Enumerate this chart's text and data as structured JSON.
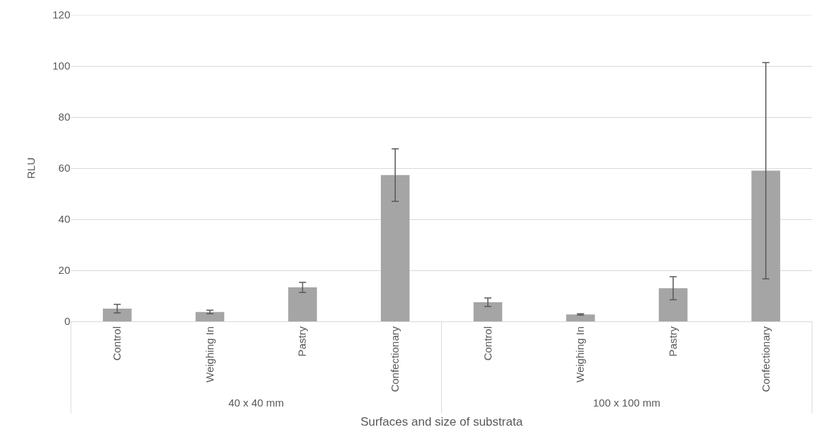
{
  "chart_data": {
    "type": "bar",
    "xlabel": "Surfaces and size of substrata",
    "ylabel": "RLU",
    "categories": [
      "Control",
      "Weighing In",
      "Pastry",
      "Confectionary",
      "Control",
      "Weighing In",
      "Pastry",
      "Confectionary"
    ],
    "values": [
      5,
      3.7,
      13.3,
      57.3,
      7.5,
      2.7,
      13,
      59
    ],
    "errors": [
      1.7,
      0.7,
      2,
      10.3,
      1.7,
      0.3,
      4.5,
      42.3
    ],
    "color": "#a5a5a5",
    "ylim": [
      0,
      120
    ],
    "yticks": [
      0,
      20,
      40,
      60,
      80,
      100,
      120
    ],
    "grid": "y",
    "annotations": [
      "40 x 40 mm",
      "100 x 100 mm"
    ]
  }
}
